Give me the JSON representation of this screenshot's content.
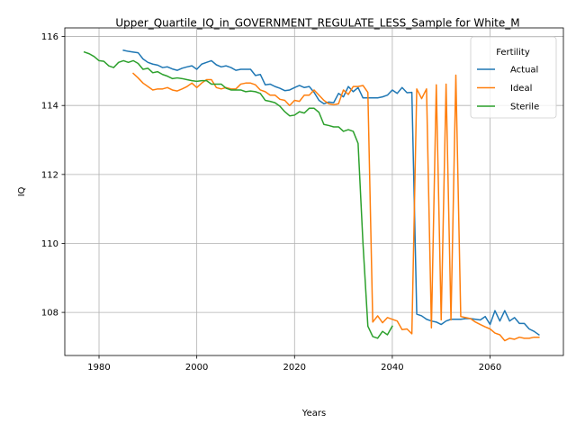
{
  "chart_data": {
    "type": "line",
    "title": "Upper_Quartile_IQ_in_GOVERNMENT_REGULATE_LESS_Sample for White_M",
    "xlabel": "Years",
    "ylabel": "IQ",
    "xlim": [
      1973,
      2075
    ],
    "ylim": [
      106.75,
      116.25
    ],
    "grid": true,
    "xticks": [
      1980,
      2000,
      2020,
      2040,
      2060
    ],
    "yticks": [
      108,
      110,
      112,
      114,
      116
    ],
    "legend": {
      "title": "Fertility",
      "placement": "top-right"
    },
    "series": [
      {
        "name": "Actual",
        "color": "#1f77b4",
        "x": [
          1985,
          1986,
          1987,
          1988,
          1989,
          1990,
          1991,
          1992,
          1993,
          1994,
          1995,
          1996,
          1997,
          1998,
          1999,
          2000,
          2001,
          2002,
          2003,
          2004,
          2005,
          2006,
          2007,
          2008,
          2009,
          2010,
          2011,
          2012,
          2013,
          2014,
          2015,
          2016,
          2017,
          2018,
          2019,
          2020,
          2021,
          2022,
          2023,
          2024,
          2025,
          2026,
          2027,
          2028,
          2029,
          2030,
          2031,
          2032,
          2033,
          2034,
          2035,
          2036,
          2037,
          2038,
          2039,
          2040,
          2041,
          2042,
          2043,
          2044,
          2045,
          2046,
          2047,
          2048,
          2049,
          2050,
          2051,
          2052,
          2053,
          2054,
          2055,
          2056,
          2057,
          2058,
          2059,
          2060,
          2061,
          2062,
          2063,
          2064,
          2065,
          2066,
          2067,
          2068,
          2069,
          2070
        ],
        "values": [
          115.6,
          115.57,
          115.55,
          115.53,
          115.35,
          115.25,
          115.2,
          115.17,
          115.1,
          115.12,
          115.06,
          115.02,
          115.08,
          115.12,
          115.15,
          115.05,
          115.2,
          115.25,
          115.3,
          115.18,
          115.12,
          115.15,
          115.1,
          115.02,
          115.05,
          115.05,
          115.05,
          114.87,
          114.9,
          114.6,
          114.62,
          114.55,
          114.5,
          114.43,
          114.45,
          114.52,
          114.58,
          114.52,
          114.55,
          114.38,
          114.15,
          114.05,
          114.1,
          114.08,
          114.35,
          114.25,
          114.55,
          114.4,
          114.52,
          114.22,
          114.22,
          114.22,
          114.22,
          114.25,
          114.3,
          114.45,
          114.35,
          114.52,
          114.37,
          114.38,
          107.95,
          107.9,
          107.8,
          107.75,
          107.72,
          107.65,
          107.75,
          107.8,
          107.8,
          107.8,
          107.82,
          107.82,
          107.8,
          107.78,
          107.88,
          107.65,
          108.05,
          107.75,
          108.05,
          107.75,
          107.85,
          107.68,
          107.68,
          107.52,
          107.45,
          107.35
        ]
      },
      {
        "name": "Ideal",
        "color": "#ff7f0e",
        "x": [
          1987,
          1988,
          1989,
          1990,
          1991,
          1992,
          1993,
          1994,
          1995,
          1996,
          1997,
          1998,
          1999,
          2000,
          2001,
          2002,
          2003,
          2004,
          2005,
          2006,
          2007,
          2008,
          2009,
          2010,
          2011,
          2012,
          2013,
          2014,
          2015,
          2016,
          2017,
          2018,
          2019,
          2020,
          2021,
          2022,
          2023,
          2024,
          2025,
          2026,
          2027,
          2028,
          2029,
          2030,
          2031,
          2032,
          2033,
          2034,
          2035,
          2036,
          2037,
          2038,
          2039,
          2040,
          2041,
          2042,
          2043,
          2044,
          2045,
          2046,
          2047,
          2048,
          2049,
          2050,
          2051,
          2052,
          2053,
          2054,
          2055,
          2056,
          2057,
          2058,
          2059,
          2060,
          2061,
          2062,
          2063,
          2064,
          2065,
          2066,
          2067,
          2068,
          2069,
          2070
        ],
        "values": [
          114.93,
          114.8,
          114.65,
          114.55,
          114.45,
          114.48,
          114.48,
          114.52,
          114.45,
          114.42,
          114.48,
          114.55,
          114.65,
          114.52,
          114.65,
          114.75,
          114.75,
          114.52,
          114.48,
          114.52,
          114.48,
          114.48,
          114.62,
          114.65,
          114.65,
          114.6,
          114.45,
          114.4,
          114.3,
          114.3,
          114.18,
          114.15,
          114.0,
          114.15,
          114.12,
          114.3,
          114.3,
          114.45,
          114.3,
          114.15,
          114.05,
          114.02,
          114.05,
          114.45,
          114.32,
          114.55,
          114.55,
          114.58,
          114.38,
          107.72,
          107.9,
          107.7,
          107.85,
          107.8,
          107.75,
          107.5,
          107.52,
          107.38,
          114.48,
          114.2,
          114.48,
          107.55,
          114.6,
          107.78,
          114.62,
          107.78,
          114.88,
          107.88,
          107.85,
          107.82,
          107.72,
          107.65,
          107.58,
          107.52,
          107.4,
          107.35,
          107.18,
          107.25,
          107.22,
          107.28,
          107.25,
          107.25,
          107.28,
          107.28
        ]
      },
      {
        "name": "Sterile",
        "color": "#2ca02c",
        "x": [
          1977,
          1978,
          1979,
          1980,
          1981,
          1982,
          1983,
          1984,
          1985,
          1986,
          1987,
          1988,
          1989,
          1990,
          1991,
          1992,
          1993,
          1994,
          1995,
          1996,
          1997,
          1998,
          1999,
          2000,
          2001,
          2002,
          2003,
          2004,
          2005,
          2006,
          2007,
          2008,
          2009,
          2010,
          2011,
          2012,
          2013,
          2014,
          2015,
          2016,
          2017,
          2018,
          2019,
          2020,
          2021,
          2022,
          2023,
          2024,
          2025,
          2026,
          2027,
          2028,
          2029,
          2030,
          2031,
          2032,
          2033,
          2034,
          2035,
          2036,
          2037,
          2038,
          2039,
          2040
        ],
        "values": [
          115.55,
          115.5,
          115.42,
          115.3,
          115.28,
          115.15,
          115.1,
          115.25,
          115.3,
          115.25,
          115.3,
          115.22,
          115.05,
          115.08,
          114.95,
          114.98,
          114.9,
          114.85,
          114.78,
          114.8,
          114.78,
          114.75,
          114.72,
          114.7,
          114.72,
          114.72,
          114.62,
          114.62,
          114.62,
          114.5,
          114.45,
          114.45,
          114.45,
          114.4,
          114.42,
          114.4,
          114.35,
          114.15,
          114.12,
          114.08,
          113.98,
          113.82,
          113.7,
          113.72,
          113.82,
          113.78,
          113.92,
          113.92,
          113.8,
          113.45,
          113.42,
          113.38,
          113.38,
          113.25,
          113.3,
          113.25,
          112.9,
          110.0,
          107.6,
          107.3,
          107.25,
          107.45,
          107.35,
          107.6
        ]
      }
    ]
  }
}
